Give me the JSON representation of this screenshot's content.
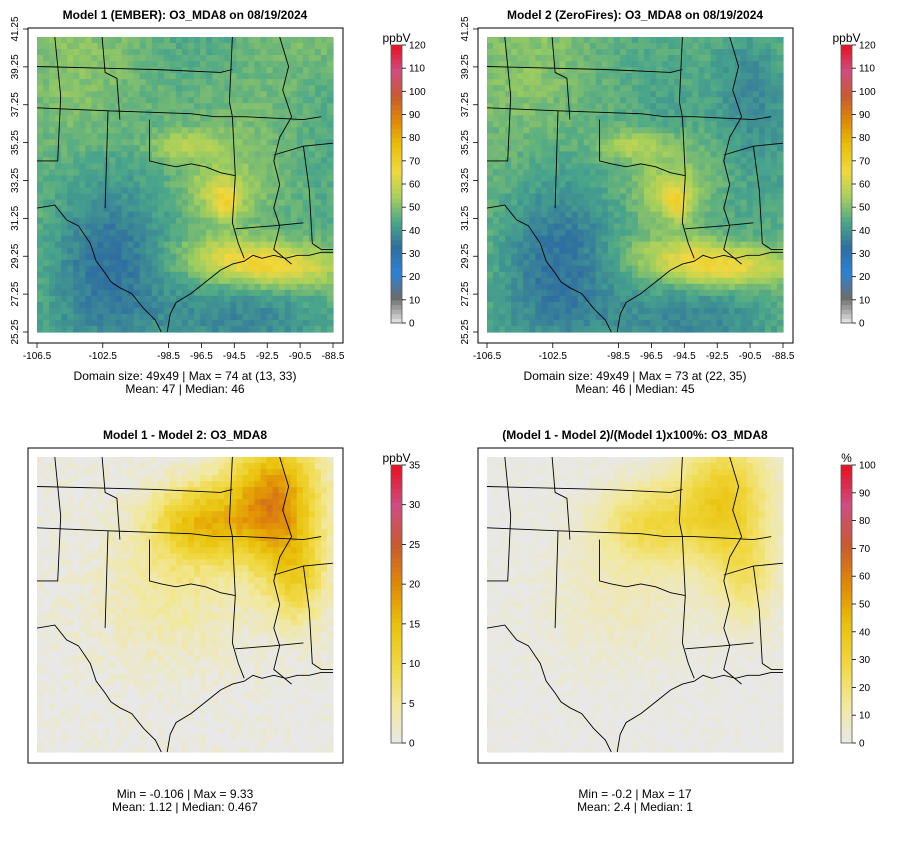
{
  "palette": {
    "ozone": [
      "#e8e8e8",
      "#6c6c6c",
      "#2a82d6",
      "#2f6fa0",
      "#4aa68a",
      "#a6d05c",
      "#f0d840",
      "#e9c10a",
      "#e08a06",
      "#c85a30",
      "#d04c82",
      "#e8101e"
    ],
    "diff": [
      "#e8e8e8",
      "#f2e89a",
      "#f0d840",
      "#e9c10a",
      "#e08a06",
      "#c85a30",
      "#d04c82",
      "#e8101e"
    ],
    "boundary_color": "#000000"
  },
  "panels": [
    {
      "title": "Model 1 (EMBER): O3_MDA8 on 08/19/2024",
      "unit": "ppbV",
      "stats_line1": "Domain size: 49x49 | Max = 74 at (13, 33)",
      "stats_line2": "Mean: 47 |  Median: 46",
      "has_axes": true,
      "colorbar_ticks": [
        "0",
        "10",
        "20",
        "30",
        "40",
        "50",
        "60",
        "70",
        "80",
        "90",
        "100",
        "110",
        "120"
      ]
    },
    {
      "title": "Model 2 (ZeroFires): O3_MDA8 on 08/19/2024",
      "unit": "ppbV",
      "stats_line1": "Domain size: 49x49 | Max = 73 at (22, 35)",
      "stats_line2": "Mean: 46 |  Median: 45",
      "has_axes": true,
      "colorbar_ticks": [
        "0",
        "10",
        "20",
        "30",
        "40",
        "50",
        "60",
        "70",
        "80",
        "90",
        "100",
        "110",
        "120"
      ]
    },
    {
      "title": "Model 1 - Model 2: O3_MDA8",
      "unit": "ppbV",
      "stats_line1": "Min = -0.106 | Max = 9.33",
      "stats_line2": "Mean: 1.12 |  Median: 0.467",
      "has_axes": false,
      "colorbar_ticks": [
        "0",
        "5",
        "10",
        "15",
        "20",
        "25",
        "30",
        "35"
      ]
    },
    {
      "title": "(Model 1 - Model 2)/(Model 1)x100%: O3_MDA8",
      "unit": "%",
      "stats_line1": "Min = -0.2 | Max = 17",
      "stats_line2": "Mean: 2.4 |  Median: 1",
      "has_axes": false,
      "colorbar_ticks": [
        "0",
        "10",
        "20",
        "30",
        "40",
        "50",
        "60",
        "70",
        "80",
        "90",
        "100"
      ]
    }
  ],
  "chart_data": [
    {
      "type": "heatmap",
      "title": "Model 1 (EMBER): O3_MDA8 on 08/19/2024",
      "variable": "O3_MDA8",
      "units": "ppbV",
      "x_ticks": [
        "-106.5",
        "-102.5",
        "-98.5",
        "-96.5",
        "-94.5",
        "-92.5",
        "-90.5",
        "-88.5"
      ],
      "y_ticks": [
        "25.25",
        "27.25",
        "29.25",
        "31.25",
        "33.25",
        "35.25",
        "37.25",
        "39.25",
        "41.25"
      ],
      "xlim": [
        -106.5,
        -88.5
      ],
      "ylim": [
        25.25,
        41.25
      ],
      "color_range": [
        0,
        120
      ],
      "grid_size": "49x49",
      "max": 74,
      "max_location": [
        13,
        33
      ],
      "mean": 47,
      "median": 46
    },
    {
      "type": "heatmap",
      "title": "Model 2 (ZeroFires): O3_MDA8 on 08/19/2024",
      "variable": "O3_MDA8",
      "units": "ppbV",
      "x_ticks": [
        "-106.5",
        "-102.5",
        "-98.5",
        "-96.5",
        "-94.5",
        "-92.5",
        "-90.5",
        "-88.5"
      ],
      "y_ticks": [
        "25.25",
        "27.25",
        "29.25",
        "31.25",
        "33.25",
        "35.25",
        "37.25",
        "39.25",
        "41.25"
      ],
      "xlim": [
        -106.5,
        -88.5
      ],
      "ylim": [
        25.25,
        41.25
      ],
      "color_range": [
        0,
        120
      ],
      "grid_size": "49x49",
      "max": 73,
      "max_location": [
        22,
        35
      ],
      "mean": 46,
      "median": 45
    },
    {
      "type": "heatmap",
      "title": "Model 1 - Model 2: O3_MDA8",
      "units": "ppbV",
      "color_range": [
        0,
        35
      ],
      "min": -0.106,
      "max": 9.33,
      "mean": 1.12,
      "median": 0.467
    },
    {
      "type": "heatmap",
      "title": "(Model 1 - Model 2)/(Model 1)x100%: O3_MDA8",
      "units": "%",
      "color_range": [
        0,
        100
      ],
      "min": -0.2,
      "max": 17,
      "mean": 2.4,
      "median": 1
    }
  ]
}
